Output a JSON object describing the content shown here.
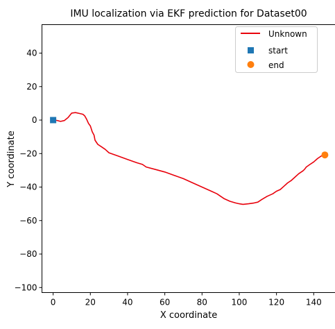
{
  "chart_data": {
    "type": "line",
    "title": "IMU localization via EKF prediction for Dataset00",
    "xlabel": "X coordinate",
    "ylabel": "Y coordinate",
    "xlim": [
      -6,
      152
    ],
    "ylim": [
      -103,
      57
    ],
    "xticks": [
      0,
      20,
      40,
      60,
      80,
      100,
      120,
      140
    ],
    "yticks": [
      40,
      20,
      0,
      -20,
      -40,
      -60,
      -80,
      -100
    ],
    "ytick_labels": [
      "40",
      "20",
      "0",
      "−20",
      "−40",
      "−60",
      "−80",
      "−100"
    ],
    "grid": false,
    "legend_position": "top-right",
    "series": [
      {
        "name": "Unknown",
        "color": "#e8000b",
        "points": [
          [
            0,
            0
          ],
          [
            2,
            -0.2
          ],
          [
            4,
            -0.8
          ],
          [
            6,
            -0.3
          ],
          [
            8,
            1.5
          ],
          [
            10,
            4.2
          ],
          [
            12,
            4.5
          ],
          [
            14,
            4.0
          ],
          [
            16,
            3.5
          ],
          [
            17,
            2.5
          ],
          [
            18,
            0.5
          ],
          [
            19,
            -2.0
          ],
          [
            20,
            -3.5
          ],
          [
            21,
            -7.0
          ],
          [
            22,
            -9.0
          ],
          [
            22.5,
            -12.0
          ],
          [
            24,
            -14.5
          ],
          [
            26,
            -16.0
          ],
          [
            28,
            -17.5
          ],
          [
            30,
            -19.5
          ],
          [
            35,
            -21.5
          ],
          [
            40,
            -23.5
          ],
          [
            45,
            -25.5
          ],
          [
            48,
            -26.5
          ],
          [
            50,
            -28.0
          ],
          [
            55,
            -29.5
          ],
          [
            60,
            -31.0
          ],
          [
            65,
            -33.0
          ],
          [
            70,
            -35.0
          ],
          [
            75,
            -37.5
          ],
          [
            80,
            -40.0
          ],
          [
            85,
            -42.5
          ],
          [
            88,
            -44.0
          ],
          [
            90,
            -45.5
          ],
          [
            92,
            -47.0
          ],
          [
            95,
            -48.5
          ],
          [
            98,
            -49.5
          ],
          [
            100,
            -50.0
          ],
          [
            102,
            -50.3
          ],
          [
            105,
            -50.0
          ],
          [
            108,
            -49.5
          ],
          [
            110,
            -49.0
          ],
          [
            112,
            -47.5
          ],
          [
            115,
            -45.5
          ],
          [
            118,
            -44.0
          ],
          [
            120,
            -42.5
          ],
          [
            122,
            -41.5
          ],
          [
            124,
            -39.5
          ],
          [
            126,
            -37.5
          ],
          [
            128,
            -36.0
          ],
          [
            130,
            -34.0
          ],
          [
            132,
            -32.0
          ],
          [
            134,
            -30.5
          ],
          [
            135,
            -29.5
          ],
          [
            136,
            -28.0
          ],
          [
            138,
            -26.5
          ],
          [
            140,
            -25.0
          ],
          [
            142,
            -23.0
          ],
          [
            144,
            -21.5
          ],
          [
            146,
            -20.8
          ]
        ]
      },
      {
        "name": "start",
        "type": "scatter",
        "marker": "square",
        "color": "#1f77b4",
        "points": [
          [
            0,
            0
          ]
        ]
      },
      {
        "name": "end",
        "type": "scatter",
        "marker": "circle",
        "color": "#ff7f0e",
        "points": [
          [
            146,
            -20.8
          ]
        ]
      }
    ]
  }
}
